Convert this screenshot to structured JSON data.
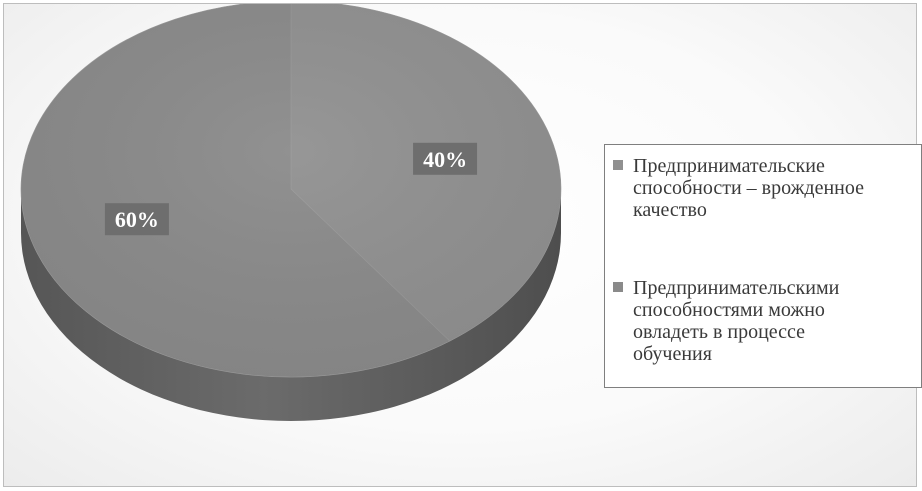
{
  "chart_data": {
    "type": "pie",
    "title": "",
    "slices": [
      {
        "label": "Предпринимательские способности – врожденное качество",
        "value": 40,
        "display": "40%",
        "color": "#909090",
        "legend_lines": [
          "Предпринимательские",
          "способности – врожденное",
          "качество"
        ]
      },
      {
        "label": "Предпринимательскими способностями можно овладеть в процессе обучения",
        "value": 60,
        "display": "60%",
        "color": "#8a8a8a",
        "legend_lines": [
          " Предпринимательскими",
          "способностями можно",
          "овладеть в процессе",
          "обучения"
        ]
      }
    ],
    "legend_placement": "right",
    "style": "3d"
  }
}
